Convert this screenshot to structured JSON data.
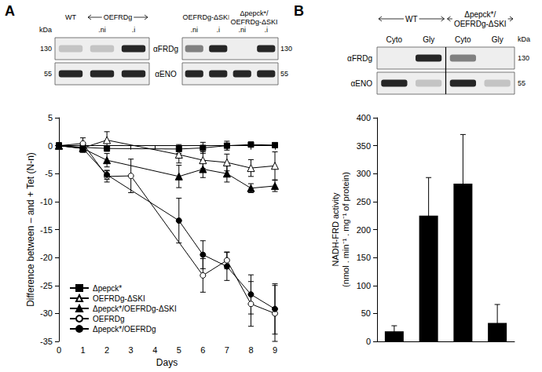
{
  "panels": [
    {
      "label": "A",
      "blots": [
        {
          "groups": [
            {
              "label": "WT",
              "lanes": [
                null
              ]
            },
            {
              "label": "OEFRDg",
              "lanes": [
                ".ni",
                ".i"
              ]
            }
          ]
        },
        {
          "groups": [
            {
              "label": "OEFRDg-ΔSKI",
              "lanes": [
                ".ni",
                ".i"
              ]
            },
            {
              "label": "Δpepck*/\nOEFRDg-ΔSKI",
              "lanes": [
                ".ni",
                ".i"
              ]
            }
          ]
        }
      ],
      "rows": [
        "αFRDg",
        "αENO"
      ],
      "unit": "kDa",
      "markers": [
        130,
        55
      ]
    },
    {
      "label": "B",
      "blots": [
        {
          "groups": [
            {
              "label": "WT",
              "lanes": [
                "Cyto",
                "Gly"
              ]
            },
            {
              "label": "Δpepck*/\nOEFRDg-ΔSKI",
              "lanes": [
                "Cyto",
                "Gly"
              ]
            }
          ]
        }
      ],
      "rows": [
        "αFRDg",
        "αENO"
      ],
      "unit": "kDa",
      "markers": [
        130,
        55
      ]
    }
  ],
  "chart_data": [
    {
      "type": "line",
      "xlabel": "Days",
      "ylabel": "Difference between – and + Tet (N-n)",
      "x": [
        0,
        1,
        2,
        3,
        4,
        5,
        6,
        7,
        8,
        9
      ],
      "xlim": [
        0,
        9
      ],
      "xticks": [
        0,
        1,
        2,
        3,
        4,
        5,
        6,
        7,
        8,
        9
      ],
      "ylim": [
        -35,
        5
      ],
      "yticks": [
        -35,
        -30,
        -25,
        -20,
        -15,
        -10,
        -5,
        0,
        5
      ],
      "grid": false,
      "legend": "bottom-left",
      "series": [
        {
          "name": "Δpepck*",
          "color": "#000000",
          "marker": "filled-square",
          "values": [
            0,
            -0.3,
            -0.5,
            null,
            null,
            -0.6,
            -0.4,
            0,
            0.2,
            0.1
          ],
          "errors": [
            0.3,
            0.5,
            0.5,
            null,
            null,
            0.8,
            1,
            0.8,
            0.3,
            0.3
          ]
        },
        {
          "name": "OEFRDg-ΔSKI",
          "color": "#000000",
          "marker": "open-triangle",
          "values": [
            0,
            -0.4,
            1,
            null,
            null,
            -1.6,
            -2.6,
            -3,
            -4,
            -3.6
          ],
          "errors": [
            0.5,
            0.8,
            1.5,
            null,
            null,
            1.5,
            1.5,
            1.5,
            1.5,
            2.5
          ]
        },
        {
          "name": "Δpepck*/OEFRDg-ΔSKI",
          "color": "#000000",
          "marker": "filled-triangle",
          "values": [
            0,
            -0.5,
            -2.6,
            null,
            null,
            -5.5,
            -4.2,
            -5,
            -7.6,
            -7.2
          ],
          "errors": [
            0.5,
            0.5,
            1.2,
            null,
            null,
            2,
            1.5,
            1.5,
            0.8,
            1
          ]
        },
        {
          "name": "OEFRDg",
          "color": "#000000",
          "marker": "open-circle",
          "values": [
            0,
            0.4,
            -5.5,
            -5.4,
            null,
            null,
            -23.2,
            -20.5,
            -28.3,
            -30
          ],
          "errors": [
            0.5,
            1,
            1,
            3,
            null,
            null,
            3,
            1.5,
            4,
            5
          ]
        },
        {
          "name": "Δpepck*/OEFRDg",
          "color": "#000000",
          "marker": "filled-circle",
          "values": [
            0,
            -0.5,
            -5.2,
            null,
            null,
            -13.4,
            -19.5,
            -21.6,
            -26.6,
            -29.2
          ],
          "errors": [
            0.5,
            0.5,
            0.8,
            null,
            null,
            4,
            2.5,
            2.5,
            3.5,
            4.5
          ]
        }
      ]
    },
    {
      "type": "bar",
      "ylabel": "NADH-FRD activity\n(nmol . min⁻¹ . mg⁻¹ of protein)",
      "categories": [
        null,
        null,
        null,
        null
      ],
      "values": [
        18,
        225,
        282,
        33
      ],
      "errors": [
        10,
        68,
        88,
        33
      ],
      "color": "#000000",
      "ylim": [
        0,
        400
      ],
      "yticks": [
        0,
        50,
        100,
        150,
        200,
        250,
        300,
        350,
        400
      ],
      "tick_labels": "y",
      "grid": false
    }
  ]
}
